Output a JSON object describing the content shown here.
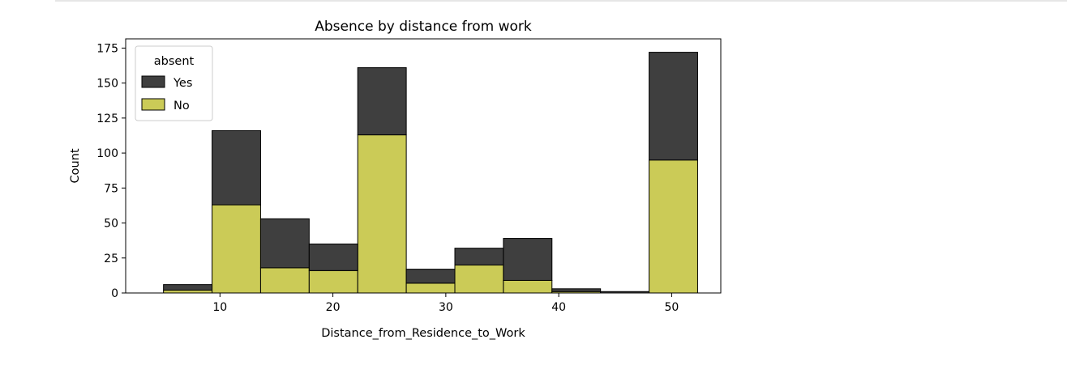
{
  "chart_data": {
    "type": "bar",
    "stacked": true,
    "title": "Absence by distance from work",
    "xlabel": "Distance_from_Residence_to_Work",
    "ylabel": "Count",
    "xlim": [
      1.65,
      54.35
    ],
    "ylim": [
      0,
      181.6
    ],
    "x_ticks": [
      10,
      20,
      30,
      40,
      50
    ],
    "y_ticks": [
      0,
      25,
      50,
      75,
      100,
      125,
      150,
      175
    ],
    "bin_edges": [
      5,
      9.3,
      13.6,
      17.9,
      22.2,
      26.5,
      30.8,
      35.1,
      39.4,
      43.7,
      48,
      52.3
    ],
    "series": [
      {
        "name": "No",
        "color": "#cbcb57",
        "values": [
          2,
          63,
          18,
          16,
          113,
          7,
          20,
          9,
          1,
          0,
          95
        ]
      },
      {
        "name": "Yes",
        "color": "#3f3f3f",
        "values": [
          4,
          53,
          35,
          19,
          48,
          10,
          12,
          30,
          2,
          1,
          77
        ]
      }
    ],
    "legend": {
      "title": "absent",
      "position": "upper-left",
      "entries": [
        {
          "label": "Yes",
          "color": "#3f3f3f"
        },
        {
          "label": "No",
          "color": "#cbcb57"
        }
      ]
    },
    "grid": false
  }
}
